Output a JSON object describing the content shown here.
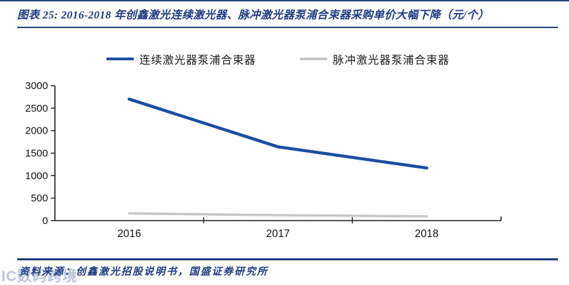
{
  "header": {
    "title": "图表 25:  2016-2018 年创鑫激光连续激光器、脉冲激光器泵浦合束器采购单价大幅下降（元/个）"
  },
  "legend": {
    "items": [
      {
        "label": "连续激光器泵浦合束器",
        "color": "#1B4EA0"
      },
      {
        "label": "脉冲激光器泵浦合束器",
        "color": "#C7C7C7"
      }
    ]
  },
  "chart_data": {
    "type": "line",
    "title": "2016-2018 年创鑫激光连续激光器、脉冲激光器泵浦合束器采购单价大幅下降",
    "unit": "元/个",
    "categories": [
      "2016",
      "2017",
      "2018"
    ],
    "series": [
      {
        "name": "连续激光器泵浦合束器",
        "color": "#1B4EA0",
        "stroke_width": 4.5,
        "values": [
          2700,
          1640,
          1170
        ]
      },
      {
        "name": "脉冲激光器泵浦合束器",
        "color": "#C7C7C7",
        "stroke_width": 3.5,
        "values": [
          160,
          120,
          95
        ]
      }
    ],
    "xlabel": "",
    "ylabel": "",
    "ylim": [
      0,
      3000
    ],
    "yticks": [
      0,
      500,
      1000,
      1500,
      2000,
      2500,
      3000
    ],
    "grid": false,
    "legend_position": "top",
    "axis_color": "#1a1a1a",
    "tick_label_color": "#111111"
  },
  "footer": {
    "source": "资料来源：创鑫激光招股说明书，国盛证券研究所"
  },
  "watermark": {
    "text": "IC数码跨境"
  }
}
